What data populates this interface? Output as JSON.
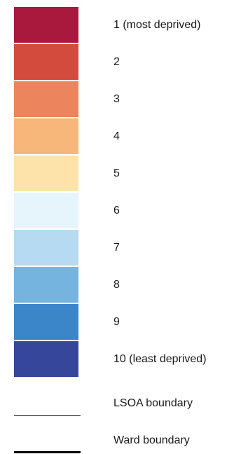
{
  "legend": {
    "classes": [
      {
        "label": "1 (most deprived)",
        "color": "#a8193d"
      },
      {
        "label": "2",
        "color": "#d24b3c"
      },
      {
        "label": "3",
        "color": "#ec845d"
      },
      {
        "label": "4",
        "color": "#f7b77b"
      },
      {
        "label": "5",
        "color": "#fde3aa"
      },
      {
        "label": "6",
        "color": "#e6f4fc"
      },
      {
        "label": "7",
        "color": "#b5daf1"
      },
      {
        "label": "8",
        "color": "#76b4e0"
      },
      {
        "label": "9",
        "color": "#3b86c8"
      },
      {
        "label": "10 (least deprived)",
        "color": "#36469a"
      }
    ],
    "lines": [
      {
        "label": "LSOA boundary",
        "color": "#000000"
      },
      {
        "label": "Ward boundary",
        "color": "#000000"
      }
    ]
  }
}
